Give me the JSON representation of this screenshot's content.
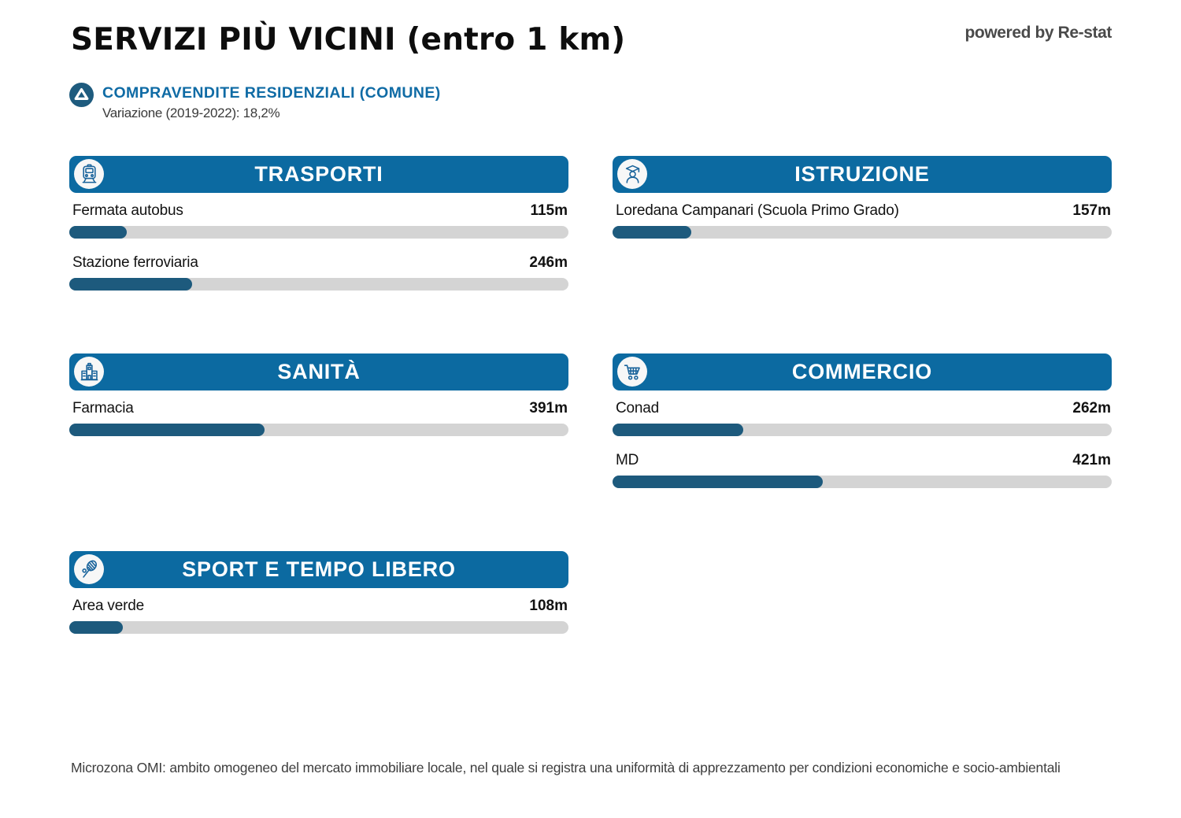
{
  "page": {
    "title": "SERVIZI PIÙ VICINI (entro 1 km)",
    "powered_by": "powered by Re-stat",
    "footer": "Microzona OMI: ambito omogeneo del mercato immobiliare locale, nel quale si registra una uniformità di apprezzamento per condizioni economiche e socio-ambientali"
  },
  "summary": {
    "icon": "trend-up-icon",
    "title": "COMPRAVENDITE RESIDENZIALI (COMUNE)",
    "subtitle": "Variazione (2019-2022): 18,2%"
  },
  "colors": {
    "header_blue": "#0c6aa1",
    "bar_fill": "#1d5a7d",
    "bar_track": "#d4d4d4",
    "summary_blue": "#0f6ba5",
    "icon_stroke": "#19639b"
  },
  "chart_data": {
    "type": "bar",
    "orientation": "horizontal",
    "unit": "m",
    "value_range": [
      0,
      1000
    ],
    "title": "SERVIZI PIÙ VICINI (entro 1 km)",
    "groups": [
      {
        "title": "TRASPORTI",
        "icon": "train-icon",
        "items": [
          {
            "label": "Fermata autobus",
            "value": 115,
            "display": "115m",
            "percent": 11.5
          },
          {
            "label": "Stazione ferroviaria",
            "value": 246,
            "display": "246m",
            "percent": 24.6
          }
        ]
      },
      {
        "title": "ISTRUZIONE",
        "icon": "student-icon",
        "items": [
          {
            "label": "Loredana Campanari (Scuola Primo Grado)",
            "value": 157,
            "display": "157m",
            "percent": 15.7
          }
        ]
      },
      {
        "title": "SANITÀ",
        "icon": "hospital-icon",
        "items": [
          {
            "label": "Farmacia",
            "value": 391,
            "display": "391m",
            "percent": 39.1
          }
        ]
      },
      {
        "title": "COMMERCIO",
        "icon": "shopping-cart-icon",
        "items": [
          {
            "label": "Conad",
            "value": 262,
            "display": "262m",
            "percent": 26.2
          },
          {
            "label": "MD",
            "value": 421,
            "display": "421m",
            "percent": 42.1
          }
        ]
      },
      {
        "title": "SPORT E TEMPO LIBERO",
        "icon": "tennis-racket-icon",
        "items": [
          {
            "label": "Area verde",
            "value": 108,
            "display": "108m",
            "percent": 10.8
          }
        ]
      }
    ]
  }
}
